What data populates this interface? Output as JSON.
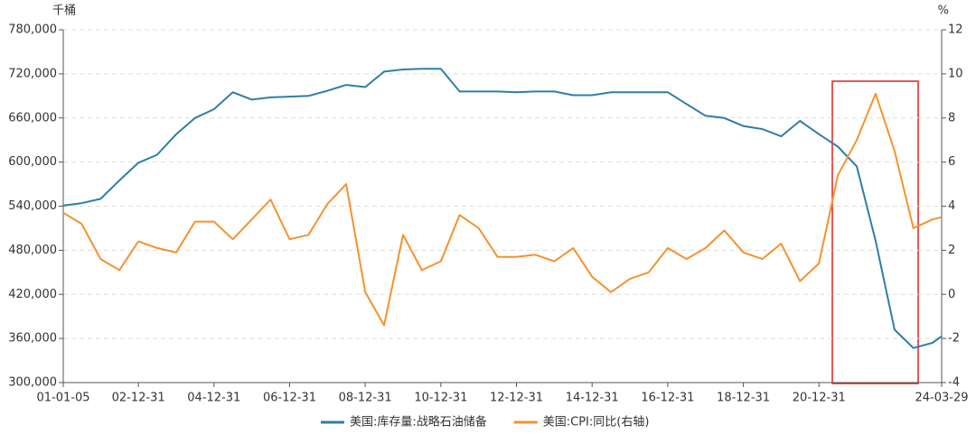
{
  "chart_data": {
    "type": "line",
    "ylabel": "千桶",
    "y2label": "%",
    "x": [
      "01-01-05",
      "01-06-30",
      "01-12-31",
      "02-06-30",
      "02-12-31",
      "03-06-30",
      "03-12-31",
      "04-06-30",
      "04-12-31",
      "05-06-30",
      "05-12-31",
      "06-06-30",
      "06-12-31",
      "07-06-30",
      "07-12-31",
      "08-06-30",
      "08-12-31",
      "09-06-30",
      "09-12-31",
      "10-06-30",
      "10-12-31",
      "11-06-30",
      "11-12-31",
      "12-06-30",
      "12-12-31",
      "13-06-30",
      "13-12-31",
      "14-06-30",
      "14-12-31",
      "15-06-30",
      "15-12-31",
      "16-06-30",
      "16-12-31",
      "17-06-30",
      "17-12-31",
      "18-06-30",
      "18-12-31",
      "19-06-30",
      "19-12-31",
      "20-06-30",
      "20-12-31",
      "21-06-30",
      "21-12-31",
      "22-06-30",
      "22-12-31",
      "23-06-30",
      "23-12-31",
      "24-03-29"
    ],
    "xlim": [
      "01-01-05",
      "24-03-29"
    ],
    "xticks": [
      "01-01-05",
      "02-12-31",
      "04-12-31",
      "06-12-31",
      "08-12-31",
      "10-12-31",
      "12-12-31",
      "14-12-31",
      "16-12-31",
      "18-12-31",
      "20-12-31",
      "24-03-29"
    ],
    "ylim": [
      300000,
      780000
    ],
    "yticks": [
      {
        "value": 300000,
        "label": "300,000"
      },
      {
        "value": 360000,
        "label": "360,000"
      },
      {
        "value": 420000,
        "label": "420,000"
      },
      {
        "value": 480000,
        "label": "480,000"
      },
      {
        "value": 540000,
        "label": "540,000"
      },
      {
        "value": 600000,
        "label": "600,000"
      },
      {
        "value": 660000,
        "label": "660,000"
      },
      {
        "value": 720000,
        "label": "720,000"
      },
      {
        "value": 780000,
        "label": "780,000"
      }
    ],
    "y2lim": [
      -4,
      12
    ],
    "y2ticks": [
      -4,
      -2,
      0,
      2,
      4,
      6,
      8,
      10,
      12
    ],
    "grid": true,
    "legend": "bottom",
    "series": [
      {
        "name": "美国:库存量:战略石油储备",
        "color": "#2f7ea6",
        "values": [
          541000,
          544000,
          550000,
          575000,
          599000,
          610000,
          638000,
          660000,
          672000,
          695000,
          685000,
          688000,
          689000,
          690000,
          697000,
          705000,
          702000,
          723000,
          726000,
          727000,
          727000,
          696000,
          696000,
          696000,
          695000,
          696000,
          696000,
          691000,
          691000,
          695000,
          695000,
          695000,
          695000,
          679000,
          663000,
          660000,
          649000,
          645000,
          635000,
          656000,
          638000,
          621000,
          594000,
          493000,
          372000,
          347000,
          354000,
          363000
        ]
      },
      {
        "name": "美国:CPI:同比(右轴)",
        "color": "#f5922f",
        "axis": "y2",
        "values": [
          3.7,
          3.2,
          1.6,
          1.1,
          2.4,
          2.1,
          1.9,
          3.3,
          3.3,
          2.5,
          3.4,
          4.3,
          2.5,
          2.7,
          4.1,
          5.0,
          0.1,
          -1.4,
          2.7,
          1.1,
          1.5,
          3.6,
          3.0,
          1.7,
          1.7,
          1.8,
          1.5,
          2.1,
          0.8,
          0.1,
          0.7,
          1.0,
          2.1,
          1.6,
          2.1,
          2.9,
          1.9,
          1.6,
          2.3,
          0.6,
          1.4,
          5.4,
          7.0,
          9.1,
          6.5,
          3.0,
          3.4,
          3.5
        ]
      }
    ]
  }
}
